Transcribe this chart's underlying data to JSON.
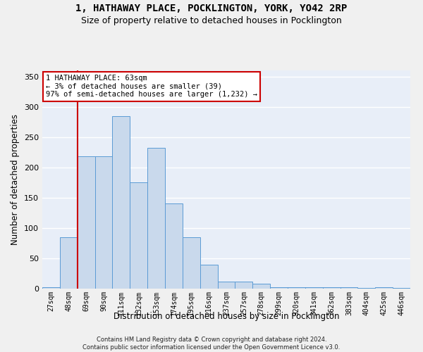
{
  "title1": "1, HATHAWAY PLACE, POCKLINGTON, YORK, YO42 2RP",
  "title2": "Size of property relative to detached houses in Pocklington",
  "xlabel": "Distribution of detached houses by size in Pocklington",
  "ylabel": "Number of detached properties",
  "categories": [
    "27sqm",
    "48sqm",
    "69sqm",
    "90sqm",
    "111sqm",
    "132sqm",
    "153sqm",
    "174sqm",
    "195sqm",
    "216sqm",
    "237sqm",
    "257sqm",
    "278sqm",
    "299sqm",
    "320sqm",
    "341sqm",
    "362sqm",
    "383sqm",
    "404sqm",
    "425sqm",
    "446sqm"
  ],
  "values": [
    2,
    85,
    218,
    218,
    285,
    175,
    232,
    140,
    85,
    40,
    12,
    12,
    8,
    2,
    2,
    2,
    2,
    2,
    1,
    2,
    1
  ],
  "bar_color": "#c9d9ec",
  "bar_edge_color": "#5b9bd5",
  "background_color": "#e8eef8",
  "grid_color": "#ffffff",
  "annotation_box_color": "#ffffff",
  "annotation_border_color": "#cc0000",
  "vline_color": "#cc0000",
  "vline_x": 1.5,
  "annotation_text_line1": "1 HATHAWAY PLACE: 63sqm",
  "annotation_text_line2": "← 3% of detached houses are smaller (39)",
  "annotation_text_line3": "97% of semi-detached houses are larger (1,232) →",
  "footer1": "Contains HM Land Registry data © Crown copyright and database right 2024.",
  "footer2": "Contains public sector information licensed under the Open Government Licence v3.0.",
  "ylim": [
    0,
    360
  ],
  "yticks": [
    0,
    50,
    100,
    150,
    200,
    250,
    300,
    350
  ],
  "title_fontsize": 10,
  "subtitle_fontsize": 9,
  "tick_fontsize": 7,
  "ylabel_fontsize": 8.5,
  "xlabel_fontsize": 8.5,
  "annotation_fontsize": 7.5,
  "footer_fontsize": 6
}
